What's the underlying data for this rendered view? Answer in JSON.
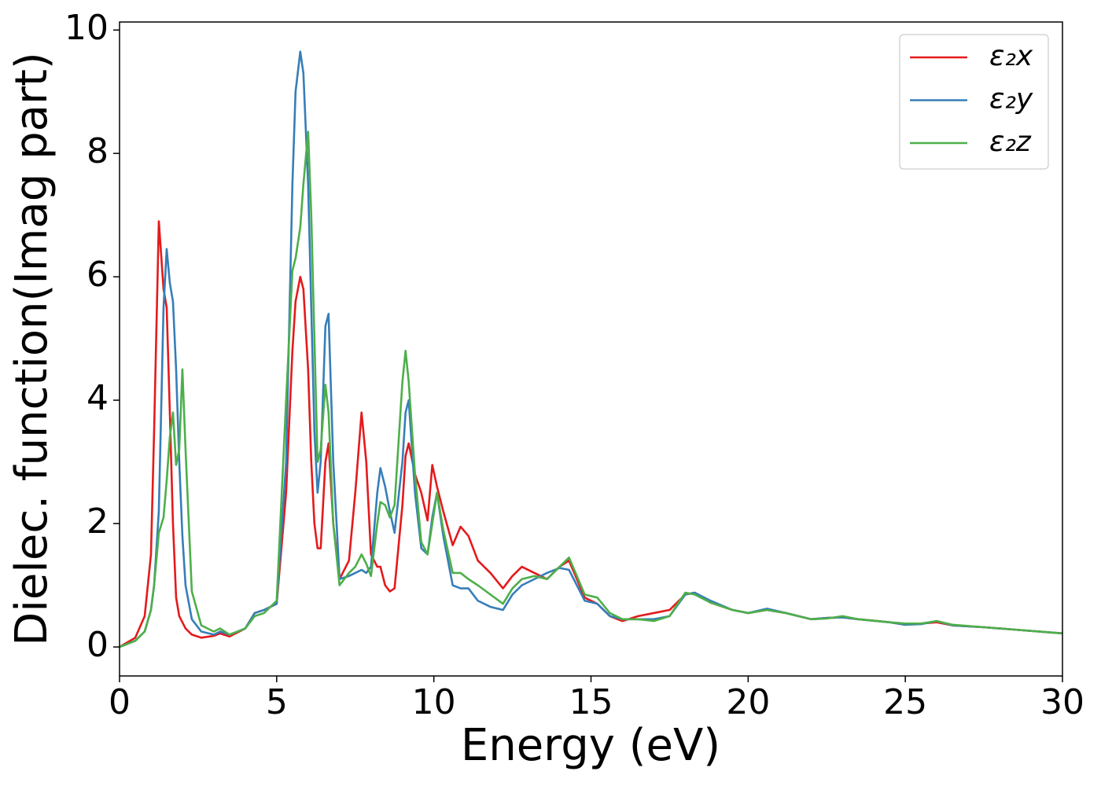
{
  "chart_data": {
    "type": "line",
    "xlabel": "Energy (eV)",
    "ylabel": "Dielec. function(Imag part)",
    "xlim": [
      0,
      30
    ],
    "ylim": [
      -0.47,
      10.13
    ],
    "xticks": [
      0,
      5,
      10,
      15,
      20,
      25,
      30
    ],
    "yticks": [
      0,
      2,
      4,
      6,
      8,
      10
    ],
    "legend": "upper right",
    "x": [
      0,
      0.5,
      0.8,
      1.0,
      1.1,
      1.25,
      1.4,
      1.5,
      1.6,
      1.7,
      1.8,
      1.9,
      2.0,
      2.1,
      2.3,
      2.6,
      3.0,
      3.2,
      3.5,
      4.0,
      4.3,
      4.6,
      5.0,
      5.3,
      5.5,
      5.6,
      5.75,
      5.85,
      6.0,
      6.1,
      6.2,
      6.3,
      6.4,
      6.55,
      6.65,
      6.8,
      7.0,
      7.3,
      7.5,
      7.7,
      7.85,
      8.0,
      8.2,
      8.3,
      8.45,
      8.6,
      8.75,
      9.0,
      9.1,
      9.2,
      9.4,
      9.6,
      9.8,
      9.95,
      10.1,
      10.3,
      10.6,
      10.85,
      11.1,
      11.4,
      11.8,
      12.2,
      12.5,
      12.8,
      13.2,
      13.6,
      14.0,
      14.3,
      14.8,
      15.2,
      15.6,
      16.0,
      16.5,
      17.0,
      17.5,
      18.0,
      18.3,
      18.8,
      19.5,
      20.0,
      20.6,
      21.2,
      22.0,
      22.5,
      23.0,
      23.5,
      24.5,
      25.0,
      25.5,
      26.0,
      26.5,
      27.5,
      28.5,
      30
    ],
    "series": [
      {
        "name": "ε₂x",
        "color": "#e41a1c",
        "values": [
          0,
          0.15,
          0.5,
          1.5,
          3.5,
          6.9,
          5.8,
          5.5,
          3.8,
          2.0,
          0.8,
          0.5,
          0.4,
          0.3,
          0.2,
          0.15,
          0.18,
          0.22,
          0.17,
          0.3,
          0.55,
          0.6,
          0.7,
          2.5,
          4.8,
          5.6,
          6.0,
          5.8,
          4.5,
          3.0,
          2.0,
          1.6,
          1.6,
          3.0,
          3.3,
          2.0,
          1.1,
          1.4,
          2.5,
          3.8,
          3.0,
          1.5,
          1.3,
          1.3,
          1.0,
          0.9,
          0.95,
          2.3,
          3.1,
          3.3,
          2.8,
          2.5,
          2.05,
          2.95,
          2.6,
          2.2,
          1.65,
          1.95,
          1.8,
          1.4,
          1.2,
          0.95,
          1.15,
          1.3,
          1.2,
          1.1,
          1.3,
          1.4,
          0.8,
          0.7,
          0.5,
          0.42,
          0.5,
          0.55,
          0.6,
          0.85,
          0.88,
          0.72,
          0.6,
          0.55,
          0.6,
          0.55,
          0.45,
          0.47,
          0.48,
          0.45,
          0.4,
          0.36,
          0.38,
          0.4,
          0.35,
          0.32,
          0.28,
          0.22
        ]
      },
      {
        "name": "ε₂y",
        "color": "#377eb8",
        "values": [
          0,
          0.1,
          0.25,
          0.6,
          1.0,
          2.2,
          5.5,
          6.45,
          5.9,
          5.6,
          4.5,
          3.0,
          1.8,
          1.0,
          0.45,
          0.25,
          0.2,
          0.25,
          0.2,
          0.3,
          0.55,
          0.6,
          0.7,
          3.0,
          7.5,
          9.0,
          9.65,
          9.3,
          7.5,
          5.5,
          3.5,
          2.5,
          3.0,
          5.2,
          5.4,
          3.0,
          1.1,
          1.15,
          1.2,
          1.25,
          1.2,
          1.3,
          2.5,
          2.9,
          2.6,
          2.2,
          1.85,
          3.0,
          3.8,
          4.0,
          2.5,
          1.6,
          1.5,
          2.1,
          2.5,
          1.8,
          1.0,
          0.95,
          0.95,
          0.75,
          0.65,
          0.6,
          0.85,
          1.0,
          1.1,
          1.2,
          1.28,
          1.25,
          0.75,
          0.7,
          0.5,
          0.45,
          0.45,
          0.45,
          0.5,
          0.85,
          0.88,
          0.75,
          0.6,
          0.55,
          0.62,
          0.55,
          0.45,
          0.47,
          0.48,
          0.45,
          0.4,
          0.36,
          0.37,
          0.42,
          0.35,
          0.32,
          0.28,
          0.22
        ]
      },
      {
        "name": "ε₂z",
        "color": "#4daf4a",
        "values": [
          0,
          0.1,
          0.25,
          0.6,
          1.0,
          1.85,
          2.1,
          2.7,
          3.4,
          3.8,
          2.95,
          3.2,
          4.5,
          3.2,
          0.9,
          0.35,
          0.25,
          0.3,
          0.2,
          0.3,
          0.5,
          0.55,
          0.75,
          4.0,
          6.1,
          6.3,
          6.8,
          7.5,
          8.35,
          7.0,
          5.0,
          3.0,
          3.2,
          4.25,
          3.8,
          2.0,
          1.0,
          1.2,
          1.3,
          1.5,
          1.35,
          1.15,
          2.0,
          2.35,
          2.3,
          2.1,
          2.3,
          4.3,
          4.8,
          4.3,
          2.8,
          1.7,
          1.5,
          2.0,
          2.5,
          1.9,
          1.2,
          1.2,
          1.1,
          1.0,
          0.85,
          0.7,
          0.95,
          1.1,
          1.15,
          1.1,
          1.3,
          1.45,
          0.85,
          0.8,
          0.55,
          0.45,
          0.45,
          0.42,
          0.5,
          0.88,
          0.85,
          0.72,
          0.6,
          0.55,
          0.6,
          0.55,
          0.45,
          0.46,
          0.5,
          0.45,
          0.4,
          0.38,
          0.38,
          0.42,
          0.36,
          0.32,
          0.28,
          0.22
        ]
      }
    ]
  }
}
